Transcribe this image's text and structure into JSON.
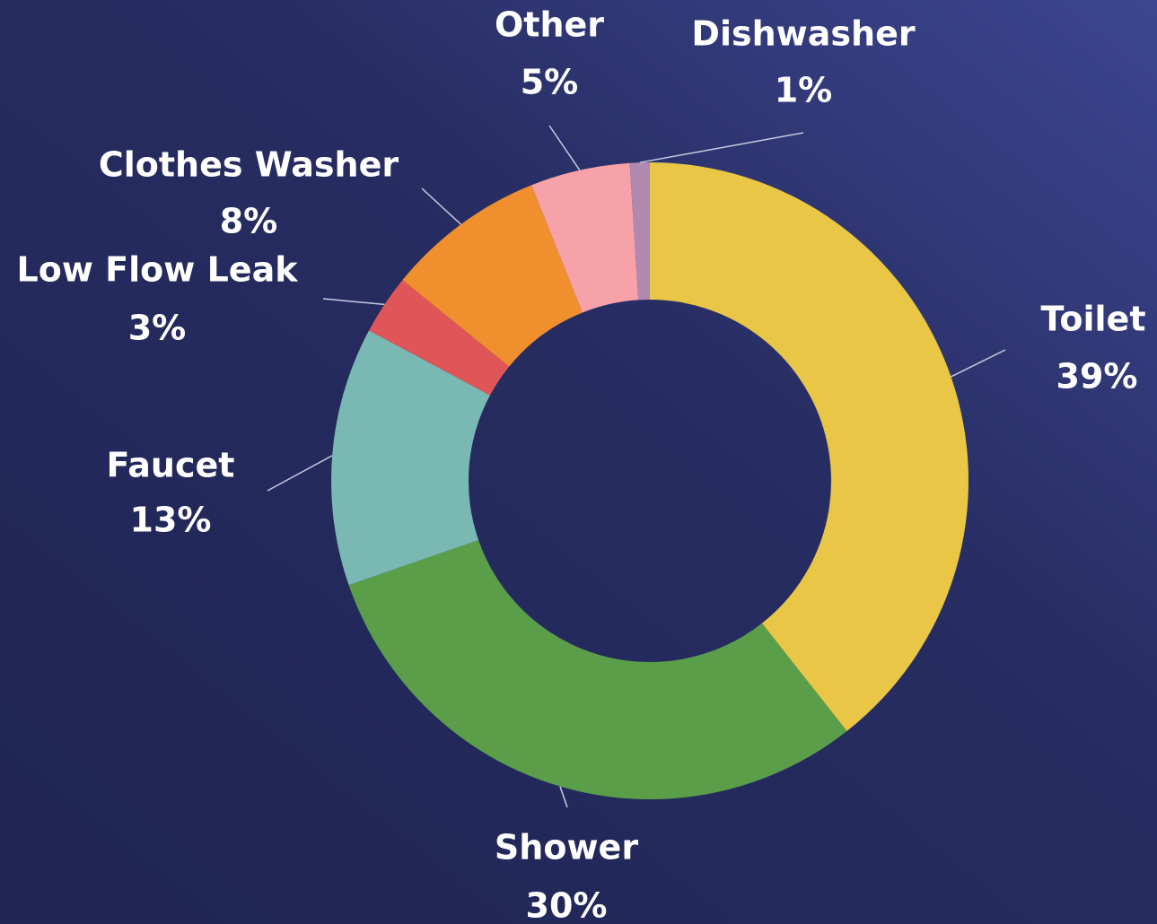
{
  "chart_data": {
    "type": "donut",
    "categories": [
      "Toilet",
      "Shower",
      "Faucet",
      "Low Flow Leak",
      "Clothes Washer",
      "Other",
      "Dishwasher"
    ],
    "values": [
      39,
      30,
      13,
      3,
      8,
      5,
      1
    ],
    "value_labels": [
      "39%",
      "30%",
      "13%",
      "3%",
      "8%",
      "5%",
      "1%"
    ],
    "colors": [
      "#e9c646",
      "#5a9e4a",
      "#7ab8b3",
      "#e05558",
      "#f08f2e",
      "#f7a1a8",
      "#b088b0"
    ]
  }
}
